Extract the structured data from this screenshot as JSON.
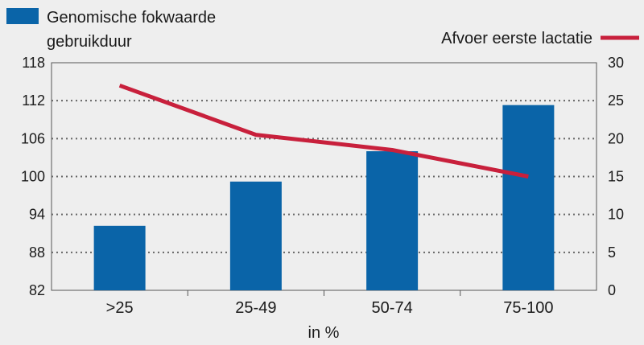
{
  "chart_data": {
    "type": "bar",
    "categories": [
      ">25",
      "25-49",
      "50-74",
      "75-100"
    ],
    "xlabel": "in %",
    "series": [
      {
        "name": "Genomische fokwaarde gebruikduur",
        "kind": "bar",
        "axis": "left",
        "color": "#0a64a8",
        "values": [
          92.2,
          99.2,
          104.0,
          111.3
        ]
      },
      {
        "name": "Afvoer eerste lactatie",
        "kind": "line",
        "axis": "right",
        "color": "#c8203c",
        "values": [
          27.0,
          20.5,
          18.5,
          15.0
        ]
      }
    ],
    "y_left": {
      "min": 82,
      "max": 118,
      "ticks": [
        82,
        88,
        94,
        100,
        106,
        112,
        118
      ]
    },
    "y_right": {
      "min": 0,
      "max": 30,
      "ticks": [
        0,
        5,
        10,
        15,
        20,
        25,
        30
      ]
    },
    "legend_position": "top",
    "grid": "horizontal dotted"
  },
  "legend": {
    "bar_label_line1": "Genomische fokwaarde",
    "bar_label_line2": "gebruikduur",
    "line_label": "Afvoer eerste lactatie"
  }
}
